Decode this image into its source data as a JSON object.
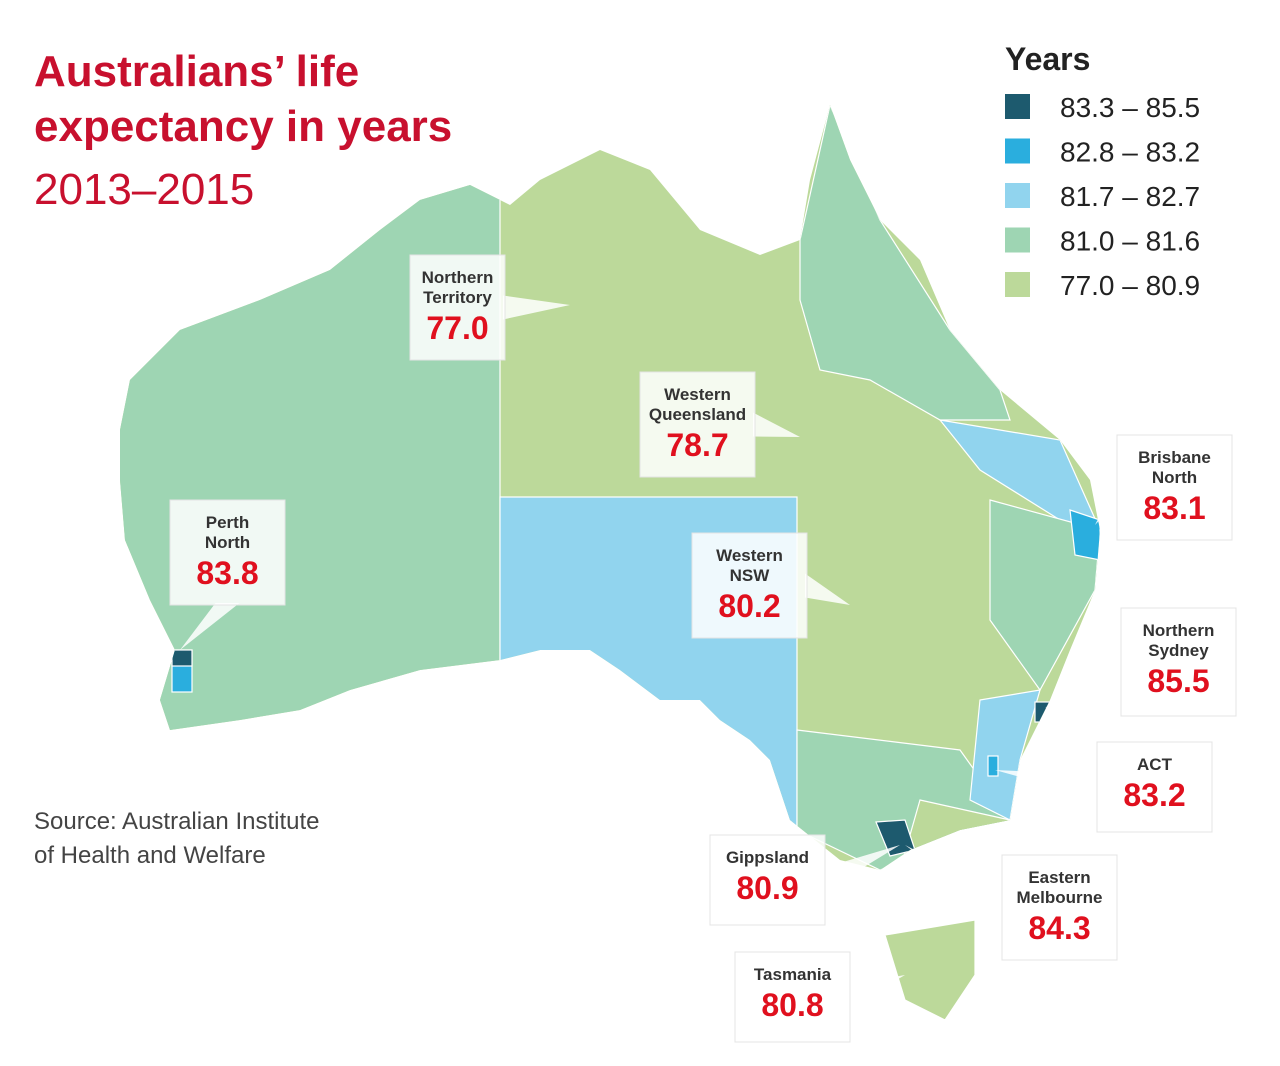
{
  "title": {
    "lines": [
      "Australians’ life",
      "expectancy in years"
    ],
    "subtitle": "2013–2015"
  },
  "legend": {
    "title": "Years",
    "items": [
      {
        "label": "83.3 – 85.5",
        "color": "#1d5a6e"
      },
      {
        "label": "82.8 – 83.2",
        "color": "#2aaede"
      },
      {
        "label": "81.7 – 82.7",
        "color": "#91d4ee"
      },
      {
        "label": "81.0 – 81.6",
        "color": "#9ed5b3"
      },
      {
        "label": "77.0 – 80.9",
        "color": "#bcd99a"
      }
    ]
  },
  "source": [
    "Source: Australian Institute",
    "of Health and Welfare"
  ],
  "callouts": [
    {
      "name": [
        "Northern",
        "Territory"
      ],
      "value": "77.0"
    },
    {
      "name": [
        "Western",
        "Queensland"
      ],
      "value": "78.7"
    },
    {
      "name": [
        "Perth",
        "North"
      ],
      "value": "83.8"
    },
    {
      "name": [
        "Western",
        "NSW"
      ],
      "value": "80.2"
    },
    {
      "name": [
        "Brisbane",
        "North"
      ],
      "value": "83.1"
    },
    {
      "name": [
        "Northern",
        "Sydney"
      ],
      "value": "85.5"
    },
    {
      "name": [
        "ACT"
      ],
      "value": "83.2"
    },
    {
      "name": [
        "Gippsland"
      ],
      "value": "80.9"
    },
    {
      "name": [
        "Eastern",
        "Melbourne"
      ],
      "value": "84.3"
    },
    {
      "name": [
        "Tasmania"
      ],
      "value": "80.8"
    }
  ]
}
